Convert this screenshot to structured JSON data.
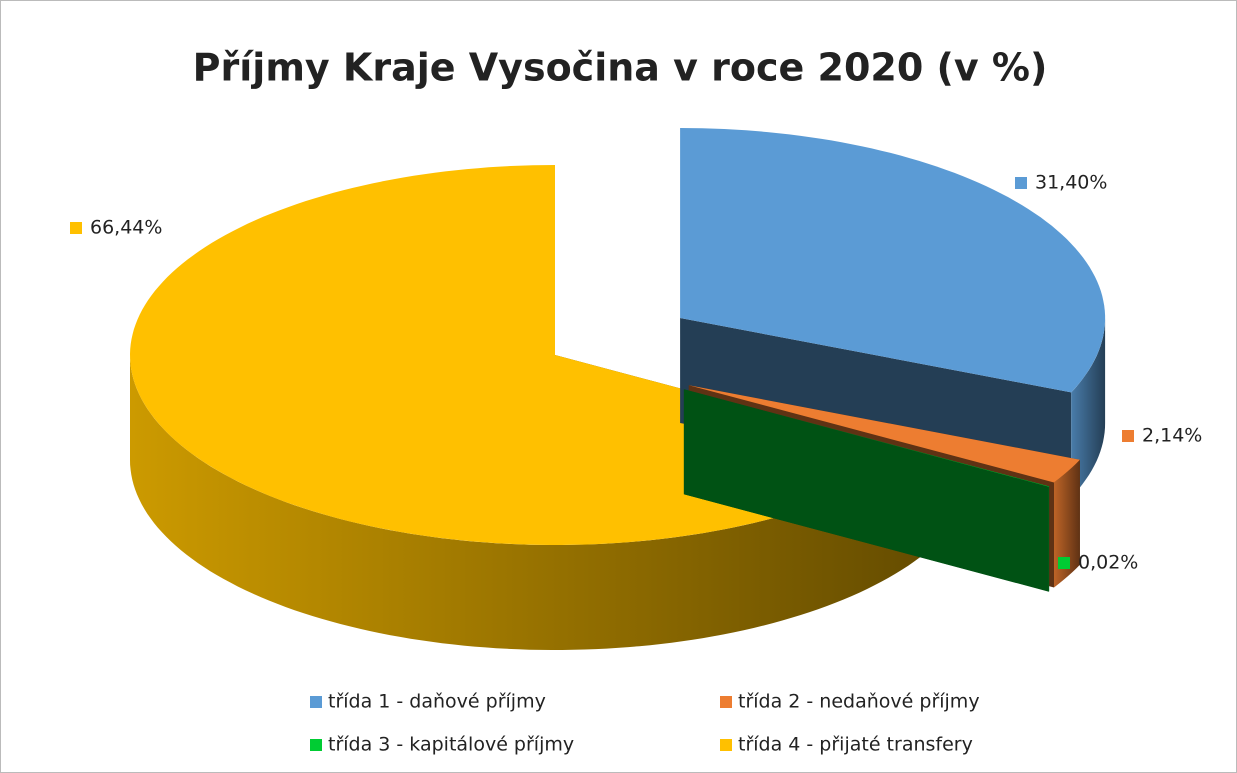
{
  "chart_data": {
    "type": "pie3d",
    "title": "Příjmy Kraje Vysočina v roce 2020 (v %)",
    "categories": [
      "třída 1 - daňové příjmy",
      "třída 2 - nedaňové příjmy",
      "třída 3 - kapitálové příjmy",
      "třída 4 - přijaté transfery"
    ],
    "values": [
      31.4,
      2.14,
      0.02,
      66.44
    ],
    "value_labels": [
      "31,40%",
      "2,14%",
      "0,02%",
      "66,44%"
    ],
    "colors": [
      "#5b9bd5",
      "#ed7d31",
      "#00cc33",
      "#ffc000"
    ],
    "legend": "bottom"
  }
}
